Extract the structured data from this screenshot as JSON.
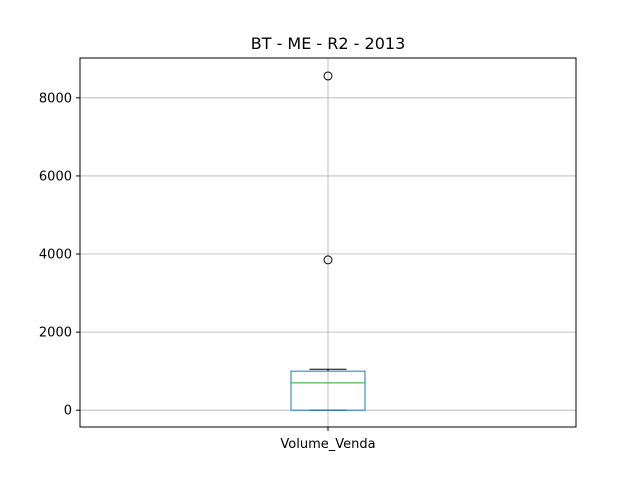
{
  "chart_data": {
    "type": "box",
    "title": "BT - ME - R2 - 2013",
    "xlabel": "",
    "ylabel": "",
    "categories": [
      "Volume_Venda"
    ],
    "ylim": [
      -430,
      9020
    ],
    "yticks": [
      0,
      2000,
      4000,
      6000,
      8000
    ],
    "grid": true,
    "series": [
      {
        "category": "Volume_Venda",
        "whisker_low": 0,
        "q1": 0,
        "median": 700,
        "q3": 1000,
        "whisker_high": 1050,
        "outliers": [
          3850,
          8560
        ]
      }
    ],
    "colors": {
      "box": "#1f77b4",
      "median": "#2ca02c",
      "whisker": "#000000",
      "grid": "#b0b0b0"
    }
  }
}
